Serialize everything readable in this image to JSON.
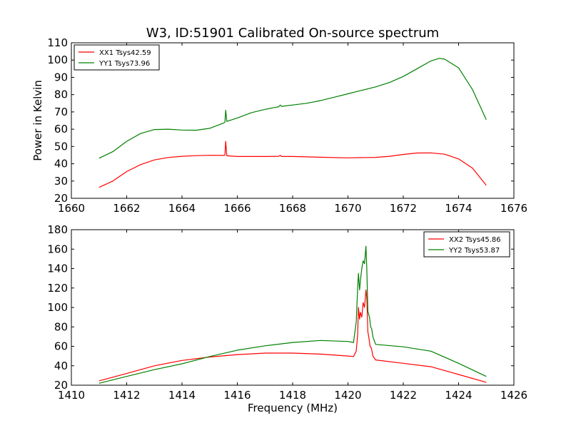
{
  "chart_data": [
    {
      "type": "line",
      "title": "W3, ID:51901 Calibrated On-source spectrum",
      "xlabel": "",
      "ylabel": "Power in Kelvin",
      "xlim": [
        1660,
        1676
      ],
      "ylim": [
        20,
        110
      ],
      "xticks": [
        1660,
        1662,
        1664,
        1666,
        1668,
        1670,
        1672,
        1674,
        1676
      ],
      "yticks": [
        20,
        30,
        40,
        50,
        60,
        70,
        80,
        90,
        100,
        110
      ],
      "legend_position": "top-left",
      "series": [
        {
          "name": "XX1 Tsys42.59",
          "color": "#ff0000",
          "points": [
            [
              1661.0,
              26.3
            ],
            [
              1661.5,
              30
            ],
            [
              1662.0,
              35.5
            ],
            [
              1662.5,
              39.5
            ],
            [
              1663.0,
              42.2
            ],
            [
              1663.5,
              43.6
            ],
            [
              1664.0,
              44.3
            ],
            [
              1664.5,
              44.7
            ],
            [
              1665.0,
              44.9
            ],
            [
              1665.5,
              44.8
            ],
            [
              1665.55,
              44.9
            ],
            [
              1665.58,
              53
            ],
            [
              1665.62,
              44.6
            ],
            [
              1666.0,
              44.2
            ],
            [
              1667.0,
              44.2
            ],
            [
              1667.5,
              44.3
            ],
            [
              1667.55,
              44.9
            ],
            [
              1667.6,
              44.2
            ],
            [
              1668.0,
              44.2
            ],
            [
              1669.0,
              43.8
            ],
            [
              1670.0,
              43.4
            ],
            [
              1671.0,
              43.7
            ],
            [
              1671.5,
              44.3
            ],
            [
              1672.0,
              45.4
            ],
            [
              1672.5,
              46.2
            ],
            [
              1673.0,
              46.3
            ],
            [
              1673.5,
              45.5
            ],
            [
              1674.0,
              42.8
            ],
            [
              1674.5,
              37.5
            ],
            [
              1675.0,
              27.5
            ]
          ]
        },
        {
          "name": "YY1 Tsys73.96",
          "color": "#008000",
          "points": [
            [
              1661.0,
              43.2
            ],
            [
              1661.5,
              47
            ],
            [
              1662.0,
              53
            ],
            [
              1662.5,
              57.5
            ],
            [
              1663.0,
              59.8
            ],
            [
              1663.5,
              60
            ],
            [
              1664.0,
              59.5
            ],
            [
              1664.5,
              59.4
            ],
            [
              1665.0,
              60.5
            ],
            [
              1665.5,
              63.5
            ],
            [
              1665.55,
              64
            ],
            [
              1665.58,
              71
            ],
            [
              1665.62,
              64.5
            ],
            [
              1666.0,
              66.5
            ],
            [
              1666.5,
              69.5
            ],
            [
              1667.0,
              71.5
            ],
            [
              1667.5,
              73
            ],
            [
              1667.55,
              74
            ],
            [
              1667.6,
              73.2
            ],
            [
              1668.0,
              74
            ],
            [
              1668.5,
              75
            ],
            [
              1669.0,
              76.5
            ],
            [
              1669.5,
              78.5
            ],
            [
              1670.0,
              80.5
            ],
            [
              1670.5,
              82.5
            ],
            [
              1671.0,
              84.5
            ],
            [
              1671.5,
              87
            ],
            [
              1672.0,
              90.5
            ],
            [
              1672.5,
              95
            ],
            [
              1673.0,
              99.5
            ],
            [
              1673.3,
              101
            ],
            [
              1673.5,
              100.5
            ],
            [
              1674.0,
              95.5
            ],
            [
              1674.5,
              83
            ],
            [
              1675.0,
              65.5
            ]
          ]
        }
      ]
    },
    {
      "type": "line",
      "title": "",
      "xlabel": "Frequency (MHz)",
      "ylabel": "",
      "xlim": [
        1410,
        1426
      ],
      "ylim": [
        20,
        180
      ],
      "xticks": [
        1410,
        1412,
        1414,
        1416,
        1418,
        1420,
        1422,
        1424,
        1426
      ],
      "yticks": [
        20,
        40,
        60,
        80,
        100,
        120,
        140,
        160,
        180
      ],
      "legend_position": "top-right",
      "series": [
        {
          "name": "XX2 Tsys45.86",
          "color": "#ff0000",
          "points": [
            [
              1411.0,
              24.5
            ],
            [
              1412.0,
              32
            ],
            [
              1413.0,
              40
            ],
            [
              1414.0,
              45.5
            ],
            [
              1415.0,
              49
            ],
            [
              1416.0,
              51.5
            ],
            [
              1417.0,
              53
            ],
            [
              1418.0,
              53
            ],
            [
              1419.0,
              52
            ],
            [
              1420.0,
              50
            ],
            [
              1420.2,
              49.5
            ],
            [
              1420.3,
              55
            ],
            [
              1420.35,
              72
            ],
            [
              1420.38,
              100
            ],
            [
              1420.42,
              88
            ],
            [
              1420.45,
              95
            ],
            [
              1420.5,
              90
            ],
            [
              1420.55,
              105
            ],
            [
              1420.6,
              100
            ],
            [
              1420.65,
              118
            ],
            [
              1420.68,
              110
            ],
            [
              1420.72,
              75
            ],
            [
              1420.75,
              70
            ],
            [
              1420.8,
              60
            ],
            [
              1420.85,
              58
            ],
            [
              1420.9,
              50
            ],
            [
              1421.0,
              46
            ],
            [
              1422.0,
              42.5
            ],
            [
              1423.0,
              39
            ],
            [
              1424.0,
              31
            ],
            [
              1425.0,
              23
            ]
          ]
        },
        {
          "name": "YY2 Tsys53.87",
          "color": "#008000",
          "points": [
            [
              1411.0,
              22
            ],
            [
              1412.0,
              29
            ],
            [
              1413.0,
              36
            ],
            [
              1414.0,
              42
            ],
            [
              1415.0,
              49.5
            ],
            [
              1416.0,
              56
            ],
            [
              1417.0,
              60.5
            ],
            [
              1418.0,
              64
            ],
            [
              1419.0,
              66
            ],
            [
              1420.0,
              65
            ],
            [
              1420.2,
              64
            ],
            [
              1420.3,
              85
            ],
            [
              1420.35,
              120
            ],
            [
              1420.38,
              135
            ],
            [
              1420.42,
              118
            ],
            [
              1420.46,
              130
            ],
            [
              1420.5,
              140
            ],
            [
              1420.55,
              148
            ],
            [
              1420.6,
              145
            ],
            [
              1420.65,
              163
            ],
            [
              1420.68,
              140
            ],
            [
              1420.72,
              96
            ],
            [
              1420.78,
              90
            ],
            [
              1420.82,
              80
            ],
            [
              1420.86,
              78
            ],
            [
              1420.9,
              70
            ],
            [
              1421.0,
              62
            ],
            [
              1422.0,
              59.5
            ],
            [
              1423.0,
              55
            ],
            [
              1424.0,
              42.5
            ],
            [
              1425.0,
              29
            ]
          ]
        }
      ]
    }
  ]
}
